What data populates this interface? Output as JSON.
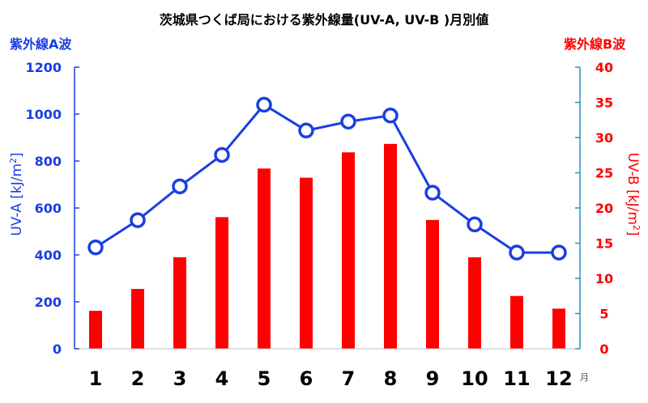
{
  "chart_data": {
    "type": "bar+line",
    "title": "茨城県つくば局における紫外線量(UV-A, UV-B )月別値",
    "left_header": "紫外線A波",
    "right_header": "紫外線B波",
    "ylabel_left": "UV-A [kJ/m",
    "ylabel_right": "UV-B [kJ/m",
    "ylabel_superscript": "2",
    "ylabel_closing": "]",
    "x_unit": "月",
    "categories": [
      "1",
      "2",
      "3",
      "4",
      "5",
      "6",
      "7",
      "8",
      "9",
      "10",
      "11",
      "12"
    ],
    "y_left_ticks": [
      "0",
      "200",
      "400",
      "600",
      "800",
      "1000",
      "1200"
    ],
    "y_right_ticks": [
      "0",
      "5",
      "10",
      "15",
      "20",
      "25",
      "30",
      "35",
      "40"
    ],
    "ylim_left": [
      0,
      1200
    ],
    "ylim_right": [
      0,
      40
    ],
    "series": [
      {
        "axis": "left",
        "kind": "line",
        "color": "#1a3fe0",
        "values": [
          432,
          548,
          692,
          826,
          1040,
          930,
          968,
          994,
          665,
          530,
          410,
          410
        ]
      },
      {
        "axis": "right",
        "kind": "bar",
        "color": "#ff0000",
        "values": [
          5.4,
          8.5,
          13.0,
          18.7,
          25.6,
          24.3,
          27.9,
          29.1,
          18.3,
          13.0,
          7.5,
          5.7
        ]
      }
    ],
    "grid": false,
    "left_axis_color": "#1a3fe0",
    "right_axis_color": "#2a8fc0",
    "right_text_color": "#ff0000"
  }
}
